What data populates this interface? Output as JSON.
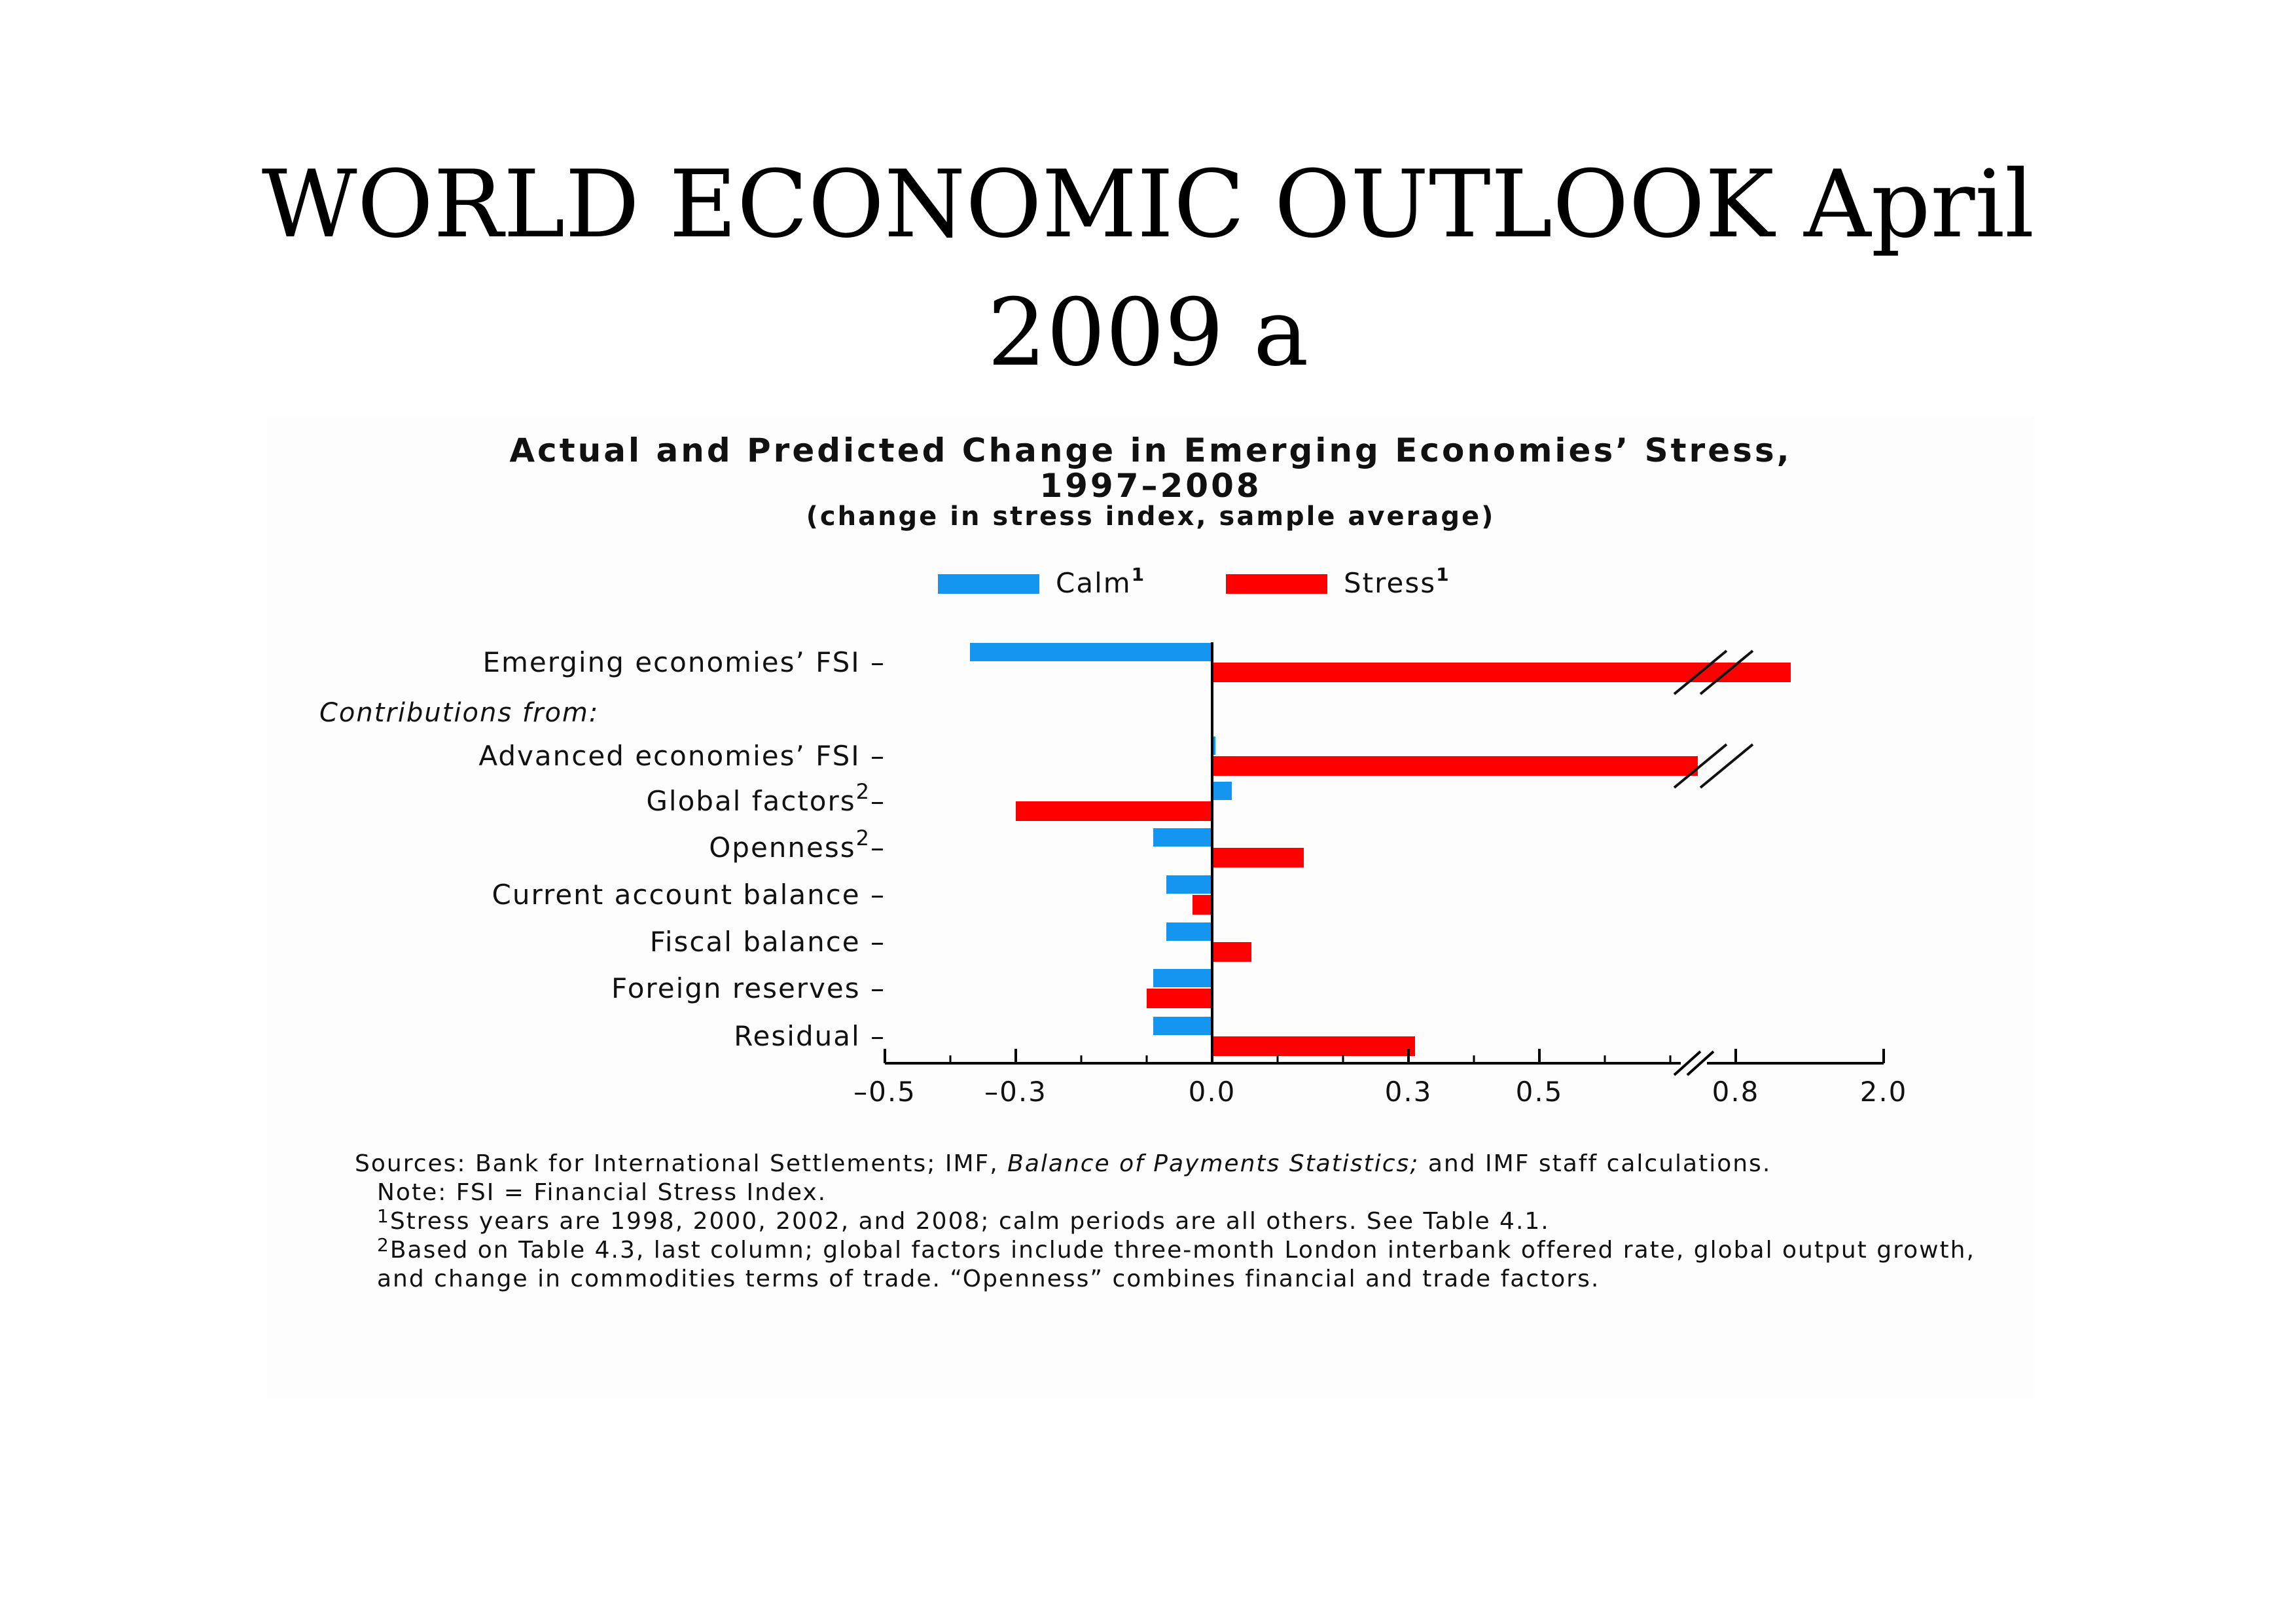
{
  "slide": {
    "title_line1": "WORLD ECONOMIC OUTLOOK April",
    "title_line2": "2009 a"
  },
  "chart_data": {
    "type": "bar",
    "orientation": "horizontal",
    "title": "Actual and Predicted Change in Emerging Economies’ Stress,",
    "title_line2": "1997–2008",
    "subtitle": "(change in stress index, sample average)",
    "xlabel": "",
    "ylabel": "",
    "section_label": "Contributions from:",
    "categories": [
      "Emerging economies’ FSI",
      "Advanced economies’ FSI",
      "Global factors",
      "Openness",
      "Current account balance",
      "Fiscal balance",
      "Foreign reserves",
      "Residual"
    ],
    "category_superscripts": [
      "",
      "",
      "2",
      "2",
      "",
      "",
      "",
      ""
    ],
    "series": [
      {
        "name": "Calm",
        "legend_superscript": "1",
        "color": "#1496f0",
        "values": [
          -0.37,
          0.005,
          0.03,
          -0.09,
          -0.07,
          -0.07,
          -0.09,
          -0.09
        ]
      },
      {
        "name": "Stress",
        "legend_superscript": "1",
        "color": "#ff0000",
        "values": [
          1.95,
          1.9,
          -0.3,
          0.14,
          -0.03,
          0.06,
          -0.1,
          0.31
        ]
      }
    ],
    "xlim": [
      -0.5,
      2.0
    ],
    "axis_break": [
      0.8,
      1.85
    ],
    "x_ticks": [
      -0.5,
      -0.3,
      0.0,
      0.3,
      0.5,
      0.8,
      2.0
    ],
    "x_tick_labels": [
      "–0.5",
      "–0.3",
      "0.0",
      "0.3",
      "0.5",
      "0.8",
      "2.0"
    ],
    "legend_placement": "top-center",
    "grid": false
  },
  "notes": {
    "sources_prefix": "Sources: Bank for International Settlements; IMF, ",
    "sources_italic": "Balance of Payments Statistics;",
    "sources_suffix": " and IMF staff calculations.",
    "note": "Note: FSI = Financial Stress Index.",
    "fn1_mark": "1",
    "fn1": "Stress years are 1998, 2000, 2002, and 2008; calm periods are all others. See Table 4.1.",
    "fn2_mark": "2",
    "fn2": "Based on Table 4.3, last column; global factors include three-month London interbank offered rate, global output growth, and change in commodities terms of trade. “Openness” combines financial and trade factors."
  }
}
